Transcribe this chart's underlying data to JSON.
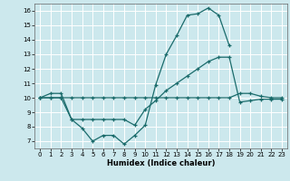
{
  "xlabel": "Humidex (Indice chaleur)",
  "bg_color": "#cce8ed",
  "grid_color": "#ffffff",
  "line_color": "#1a6b6b",
  "x_ticks": [
    0,
    1,
    2,
    3,
    4,
    5,
    6,
    7,
    8,
    9,
    10,
    11,
    12,
    13,
    14,
    15,
    16,
    17,
    18,
    19,
    20,
    21,
    22,
    23
  ],
  "y_ticks": [
    7,
    8,
    9,
    10,
    11,
    12,
    13,
    14,
    15,
    16
  ],
  "xlim": [
    -0.5,
    23.5
  ],
  "ylim": [
    6.5,
    16.5
  ],
  "series": [
    {
      "x": [
        0,
        1,
        2,
        3,
        4,
        5,
        6,
        7,
        8,
        9,
        10,
        11,
        12,
        13,
        14,
        15,
        16,
        17,
        18
      ],
      "y": [
        10.0,
        10.3,
        10.3,
        8.5,
        7.9,
        7.0,
        7.4,
        7.4,
        6.8,
        7.4,
        8.1,
        10.9,
        13.0,
        14.3,
        15.7,
        15.8,
        16.2,
        15.7,
        13.6
      ]
    },
    {
      "x": [
        0,
        1,
        2,
        3,
        4,
        5,
        6,
        7,
        8,
        9,
        10,
        11,
        12,
        13,
        14,
        15,
        16,
        17,
        18,
        19,
        20,
        21,
        22,
        23
      ],
      "y": [
        10.0,
        10.0,
        10.0,
        10.0,
        10.0,
        10.0,
        10.0,
        10.0,
        10.0,
        10.0,
        10.0,
        10.0,
        10.0,
        10.0,
        10.0,
        10.0,
        10.0,
        10.0,
        10.0,
        10.3,
        10.3,
        10.1,
        10.0,
        10.0
      ]
    },
    {
      "x": [
        0,
        1,
        2,
        3,
        4,
        5,
        6,
        7,
        8,
        9,
        10,
        11,
        12,
        13,
        14,
        15,
        16,
        17,
        18,
        19,
        20,
        21,
        22,
        23
      ],
      "y": [
        10.0,
        10.0,
        10.0,
        8.5,
        8.5,
        8.5,
        8.5,
        8.5,
        8.5,
        8.1,
        9.2,
        9.8,
        10.5,
        11.0,
        11.5,
        12.0,
        12.5,
        12.8,
        12.8,
        9.7,
        9.8,
        9.9,
        9.9,
        9.9
      ]
    }
  ]
}
